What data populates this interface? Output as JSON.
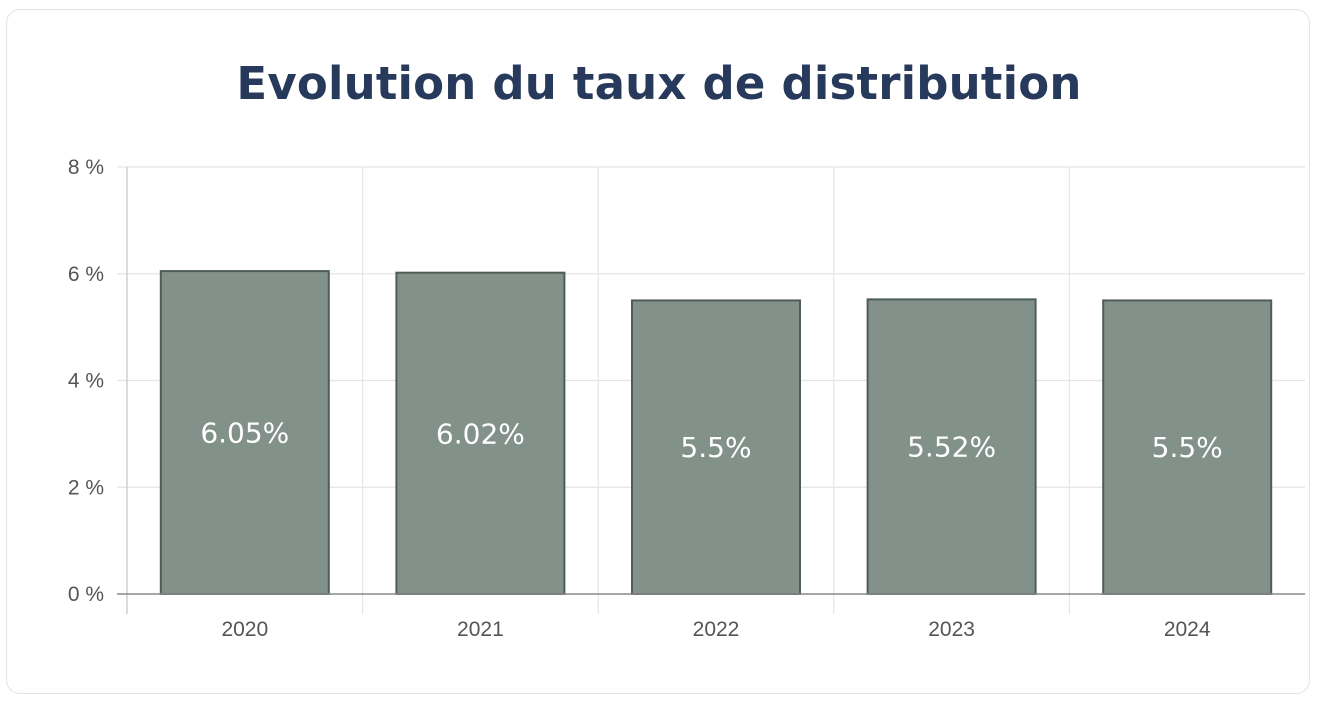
{
  "chart_data": {
    "type": "bar",
    "title": "Evolution du taux de distribution",
    "categories": [
      "2020",
      "2021",
      "2022",
      "2023",
      "2024"
    ],
    "values": [
      6.05,
      6.02,
      5.5,
      5.52,
      5.5
    ],
    "data_labels": [
      "6.05%",
      "6.02%",
      "5.5%",
      "5.52%",
      "5.5%"
    ],
    "ylim": [
      0,
      8
    ],
    "y_ticks": [
      0,
      2,
      4,
      6,
      8
    ],
    "y_tick_labels": [
      "0 %",
      "2 %",
      "4 %",
      "6 %",
      "8 %"
    ],
    "xlabel": "",
    "ylabel": "",
    "grid": true,
    "bar_color": "#82918a",
    "bar_border_color": "#4e5e57"
  }
}
